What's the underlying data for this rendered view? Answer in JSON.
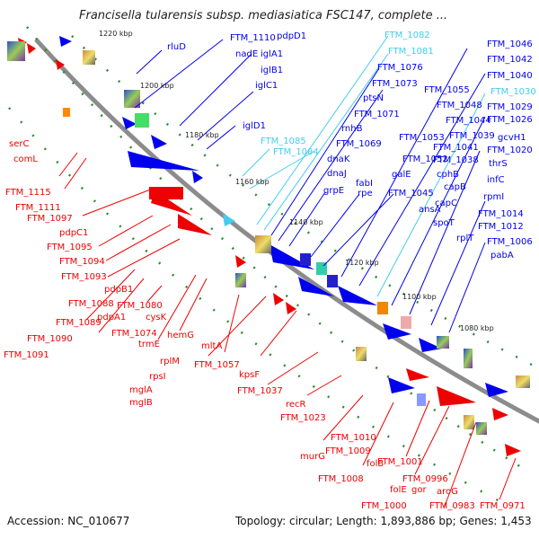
{
  "title": "Francisella tularensis subsp. mediasiatica FSC147, complete ...",
  "footer": {
    "accession": "Accession: NC_010677",
    "summary": "Topology: circular; Length: 1,893,886 bp; Genes: 1,453"
  },
  "colors": {
    "forward": "#0000ee",
    "reverse": "#ee0000",
    "rna": "#44ccee",
    "backbone": "#8c8c8c",
    "dots": "#2a8a2a"
  },
  "ticks": [
    "1220 kbp",
    "1200 kbp",
    "1180 kbp",
    "1160 kbp",
    "1140 kbp",
    "1120 kbp",
    "1100 kbp",
    "1080 kbp"
  ],
  "forward_labels": [
    "rluD",
    "FTM_1110",
    "pdpD1",
    "nadE",
    "iglA1",
    "iglB1",
    "iglC1",
    "iglD1",
    "FTM_1082",
    "FTM_1081",
    "FTM_1076",
    "FTM_1073",
    "ptsN",
    "FTM_1071",
    "rnhB",
    "FTM_1069",
    "dnaK",
    "dnaJ",
    "grpE",
    "fabI",
    "rpe",
    "FTM_1045",
    "FTM_1085",
    "FTM_1084",
    "FTM_1055",
    "FTM_1053",
    "FTM_1052",
    "galE",
    "ansA",
    "spoT",
    "FTM_1048",
    "FTM_1044",
    "FTM_1041",
    "FTM_1039",
    "FTM_1038",
    "cphB",
    "capB",
    "capC",
    "rplT",
    "FTM_1046",
    "FTM_1042",
    "FTM_1040",
    "FTM_1030",
    "FTM_1029",
    "FTM_1026",
    "gcvH1",
    "FTM_1020",
    "thrS",
    "infC",
    "rpmI",
    "FTM_1014",
    "FTM_1012",
    "FTM_1006",
    "pabA"
  ],
  "reverse_labels": [
    "serC",
    "comL",
    "FTM_1115",
    "FTM_1111",
    "FTM_1097",
    "pdpC1",
    "FTM_1095",
    "FTM_1094",
    "FTM_1093",
    "pdpB1",
    "FTM_1088",
    "FTM_1089",
    "FTM_1090",
    "FTM_1091",
    "pdpA1",
    "FTM_1080",
    "cysK",
    "FTM_1074",
    "trmE",
    "hemG",
    "rplM",
    "rpsI",
    "mglA",
    "mglB",
    "mltA",
    "FTM_1057",
    "kpsF",
    "FTM_1037",
    "recR",
    "FTM_1023",
    "FTM_1010",
    "FTM_1009",
    "murG",
    "FTM_1008",
    "folB",
    "FTM_1001",
    "FTM_1000",
    "folE",
    "gor",
    "FTM_0996",
    "aroG",
    "FTM_0983",
    "FTM_0971"
  ]
}
